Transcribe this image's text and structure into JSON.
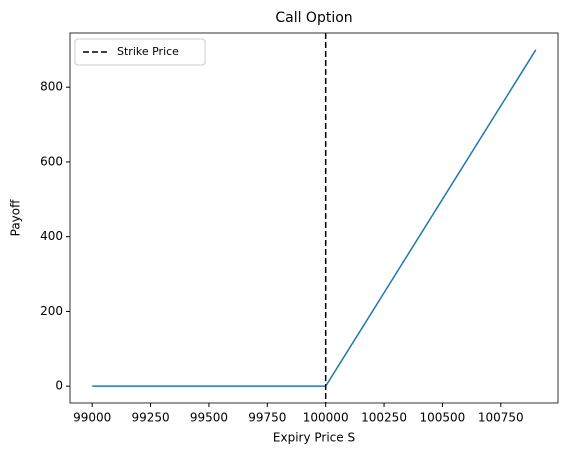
{
  "chart_data": {
    "type": "line",
    "title": "Call Option",
    "x_label": "Expiry Price S",
    "y_label": "Payoff",
    "x": [
      99000,
      100000,
      100900
    ],
    "series": [
      {
        "name": null,
        "color": "#1f77b4",
        "values": [
          0,
          0,
          900
        ]
      }
    ],
    "vlines": [
      {
        "name": "Strike Price",
        "x": 100000,
        "color": "#000000",
        "dashed": true
      }
    ],
    "xlim": [
      98905,
      100995
    ],
    "xticks": [
      99000,
      99250,
      99500,
      99750,
      100000,
      100250,
      100500,
      100750
    ],
    "ylim": [
      -45,
      945
    ],
    "yticks": [
      0,
      200,
      400,
      600,
      800
    ],
    "legend": "upper-left",
    "grid": false
  }
}
